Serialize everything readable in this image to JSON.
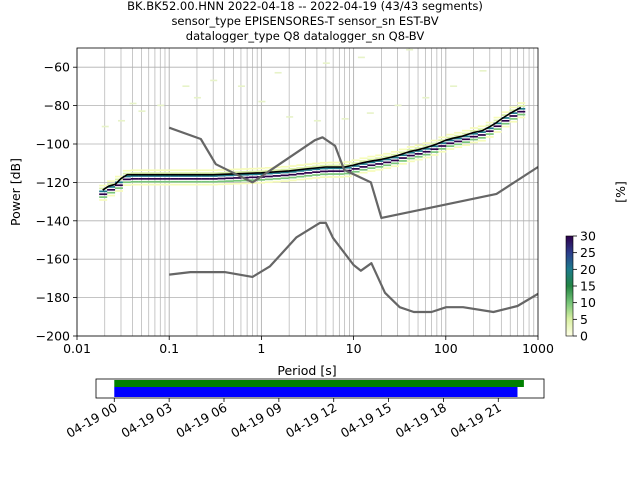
{
  "chart_data": [
    {
      "type": "heatmap",
      "title_lines": [
        "BK.BK52.00.HNN   2022-04-18 -- 2022-04-19  (43/43 segments)",
        "sensor_type EPISENSORES-T sensor_sn EST-BV",
        "datalogger_type Q8 datalogger_sn Q8-BV"
      ],
      "xlabel": "Period [s]",
      "ylabel": "Power [dB]",
      "xscale": "log",
      "xlim": [
        0.01,
        1000
      ],
      "ylim": [
        -200,
        -50
      ],
      "grid": true,
      "xticks": [
        0.01,
        0.1,
        1,
        10,
        100,
        1000
      ],
      "xtick_labels": [
        "0.01",
        "0.1",
        "1",
        "10",
        "100",
        "1000"
      ],
      "yticks": [
        -200,
        -180,
        -160,
        -140,
        -120,
        -100,
        -80,
        -60
      ],
      "ytick_labels": [
        "−200",
        "−180",
        "−160",
        "−140",
        "−120",
        "−100",
        "−80",
        "−60"
      ],
      "colorbar": {
        "label": "[%]",
        "range": [
          0,
          30
        ],
        "ticks": [
          0,
          5,
          10,
          15,
          20,
          25,
          30
        ],
        "tick_labels": [
          "0",
          "5",
          "10",
          "15",
          "20",
          "25",
          "30"
        ]
      },
      "series": [
        {
          "kind": "mode",
          "color": "#000000",
          "x": [
            0.019,
            0.022,
            0.026,
            0.03,
            0.035,
            0.05,
            0.1,
            0.3,
            1,
            2,
            3,
            5,
            8,
            10,
            12,
            15,
            20,
            25,
            30,
            40,
            50,
            60,
            70,
            80,
            100,
            120,
            150,
            200,
            250,
            300,
            350,
            400,
            500,
            650
          ],
          "y": [
            -124,
            -122,
            -121,
            -118,
            -116,
            -116,
            -116,
            -116,
            -115,
            -114,
            -113,
            -112,
            -112,
            -111,
            -110,
            -109,
            -108,
            -107,
            -106,
            -104,
            -103,
            -102,
            -101,
            -100,
            -98,
            -97,
            -96,
            -94,
            -93,
            -91,
            -89,
            -87,
            -84,
            -81
          ]
        },
        {
          "kind": "noise-model",
          "color": "#666666",
          "x": [
            0.1,
            0.22,
            0.32,
            0.8,
            3.8,
            4.6,
            6.3,
            7.9,
            15.4,
            20,
            354.8,
            1000
          ],
          "y": [
            -91.5,
            -97.4,
            -110.5,
            -120,
            -98,
            -96.5,
            -101,
            -113.5,
            -120,
            -138.5,
            -126,
            -112
          ]
        },
        {
          "kind": "noise-model",
          "color": "#666666",
          "x": [
            0.1,
            0.17,
            0.4,
            0.8,
            1.24,
            2.4,
            4.3,
            5,
            6,
            10,
            12,
            15.6,
            21.9,
            31.6,
            45,
            70,
            101,
            154,
            328,
            600,
            1000
          ],
          "y": [
            -168,
            -166.7,
            -166.7,
            -169.2,
            -163.7,
            -148.6,
            -141.1,
            -141.1,
            -149,
            -163,
            -166,
            -162.1,
            -177.5,
            -185,
            -187.5,
            -187.5,
            -185,
            -185,
            -187.5,
            -184.4,
            -178
          ]
        }
      ]
    },
    {
      "type": "bar",
      "description_of_content": "data availability timeline",
      "xticks": [
        "04-19 00",
        "04-19 03",
        "04-19 06",
        "04-19 09",
        "04-19 12",
        "04-19 15",
        "04-19 18",
        "04-19 21"
      ],
      "xlim_hours": [
        -1,
        23.5
      ],
      "series": [
        {
          "color": "#008000",
          "start_hour": 0,
          "end_hour": 22.4
        },
        {
          "color": "#0000ff",
          "start_hour": 0,
          "end_hour": 22.05
        }
      ]
    }
  ]
}
